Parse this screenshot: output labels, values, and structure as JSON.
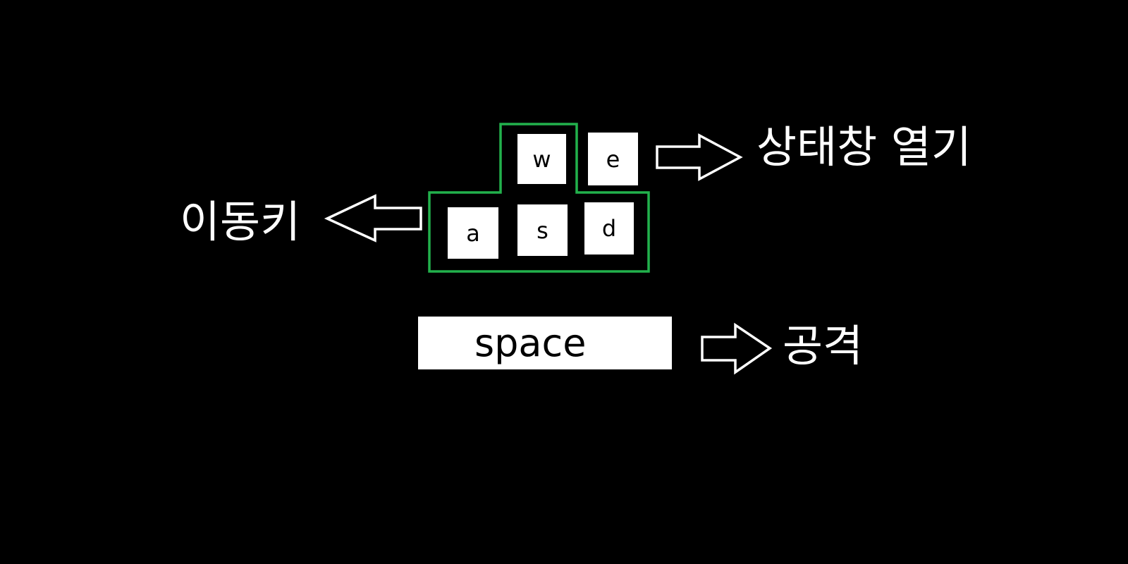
{
  "colors": {
    "background": "#000000",
    "key_fill": "#ffffff",
    "highlight_outline": "#22b14c",
    "text": "#ffffff",
    "arrow_outline": "#ffffff"
  },
  "keys": {
    "w": "w",
    "e": "e",
    "a": "a",
    "s": "s",
    "d": "d",
    "space": "space"
  },
  "labels": {
    "status_window": "상태창 열기",
    "movement": "이동키",
    "attack": "공격"
  },
  "icons": {
    "arrow_status": "right-arrow-outline",
    "arrow_move": "left-arrow-outline",
    "arrow_attack": "right-arrow-outline"
  }
}
